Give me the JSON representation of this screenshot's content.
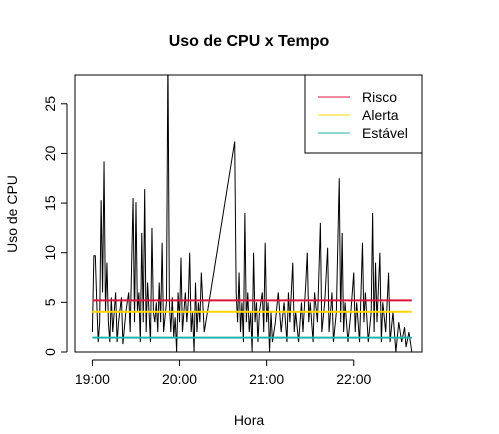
{
  "chart_data": {
    "type": "line",
    "title": "Uso de CPU x Tempo",
    "xlabel": "Hora",
    "ylabel": "Uso de CPU",
    "x": [
      "19:00",
      "19:01",
      "19:02",
      "19:03",
      "19:04",
      "19:05",
      "19:06",
      "19:07",
      "19:08",
      "19:09",
      "19:10",
      "19:11",
      "19:12",
      "19:13",
      "19:14",
      "19:15",
      "19:16",
      "19:17",
      "19:18",
      "19:20",
      "19:21",
      "19:23",
      "19:25",
      "19:26",
      "19:28",
      "19:29",
      "19:30",
      "19:31",
      "19:32",
      "19:33",
      "19:34",
      "19:35",
      "19:36",
      "19:37",
      "19:38",
      "19:40",
      "19:41",
      "19:42",
      "19:43",
      "19:44",
      "19:45",
      "19:46",
      "19:47",
      "19:48",
      "19:49",
      "19:51",
      "19:52",
      "19:53",
      "19:54",
      "19:55",
      "19:56",
      "19:57",
      "19:58",
      "19:59",
      "20:00",
      "20:01",
      "20:02",
      "20:03",
      "20:04",
      "20:05",
      "20:06",
      "20:07",
      "20:08",
      "20:09",
      "20:10",
      "20:11",
      "20:12",
      "20:13",
      "20:14",
      "20:15",
      "20:17",
      "20:38",
      "20:39",
      "20:40",
      "20:41",
      "20:42",
      "20:43",
      "20:44",
      "20:45",
      "20:46",
      "20:47",
      "20:48",
      "20:49",
      "20:50",
      "20:51",
      "20:52",
      "20:53",
      "20:54",
      "20:55",
      "20:57",
      "20:58",
      "20:59",
      "21:00",
      "21:01",
      "21:02",
      "21:03",
      "21:04",
      "21:06",
      "21:08",
      "21:10",
      "21:12",
      "21:14",
      "21:15",
      "21:16",
      "21:18",
      "21:19",
      "21:20",
      "21:22",
      "21:24",
      "21:25",
      "21:27",
      "21:28",
      "21:29",
      "21:30",
      "21:32",
      "21:33",
      "21:35",
      "21:37",
      "21:38",
      "21:40",
      "21:42",
      "21:43",
      "21:45",
      "21:46",
      "21:48",
      "21:50",
      "21:51",
      "21:52",
      "21:53",
      "21:54",
      "21:56",
      "21:58",
      "22:00",
      "22:01",
      "22:02",
      "22:04",
      "22:06",
      "22:07",
      "22:08",
      "22:10",
      "22:12",
      "22:13",
      "22:14",
      "22:15",
      "22:16",
      "22:18",
      "22:19",
      "22:20",
      "22:22",
      "22:24",
      "22:25",
      "22:27",
      "22:29",
      "22:31",
      "22:33",
      "22:35",
      "22:36",
      "22:38",
      "22:40"
    ],
    "series": [
      {
        "name": "Uso de CPU",
        "color": "#000000",
        "values": [
          2,
          9.7,
          9.7,
          5,
          1,
          3,
          15.3,
          6,
          19.2,
          4,
          9,
          3,
          1,
          5.5,
          2,
          4,
          6,
          1,
          3,
          5.5,
          0.8,
          4,
          6,
          2,
          15.5,
          3,
          15.1,
          4,
          6,
          1,
          12,
          3,
          16.4,
          2,
          7,
          1,
          12.5,
          4,
          3,
          5,
          2,
          7,
          3,
          11,
          2,
          5,
          30,
          5,
          2,
          5.5,
          1.5,
          3.5,
          0,
          6,
          3,
          9.5,
          2,
          4,
          6,
          3,
          5,
          10,
          2,
          4,
          0,
          7,
          2,
          5,
          3,
          8,
          2,
          21.2,
          6,
          3,
          8,
          2,
          5,
          1,
          14,
          3,
          6,
          2,
          4,
          0,
          10,
          3,
          5,
          1,
          4,
          6,
          2,
          11,
          3,
          5,
          0,
          4,
          1,
          3,
          6,
          2,
          5,
          1,
          6,
          3,
          9,
          2,
          4,
          1,
          5,
          2,
          7,
          10,
          3,
          5,
          1,
          6,
          3,
          13,
          2,
          5,
          10.5,
          2,
          6,
          1,
          4,
          17.5,
          3,
          12,
          2,
          5,
          1,
          4,
          8,
          2,
          5,
          1,
          11,
          3,
          6,
          1,
          4,
          14,
          2,
          9,
          3,
          10,
          1,
          5,
          2,
          8,
          1,
          4,
          0,
          3,
          1,
          2.5,
          0.5,
          2,
          0
        ]
      }
    ],
    "reference_lines": [
      {
        "name": "Risco",
        "color": "#dc143c",
        "value": 5.2
      },
      {
        "name": "Alerta",
        "color": "#ffd700",
        "value": 4.05
      },
      {
        "name": "Estável",
        "color": "#20b2aa",
        "value": 1.45
      }
    ],
    "xlim": [
      "18:48",
      "22:47"
    ],
    "xticks": [
      "19:00",
      "20:00",
      "21:00",
      "22:00"
    ],
    "ylim": [
      0,
      27.9
    ],
    "yticks": [
      0,
      5,
      10,
      15,
      20,
      25
    ],
    "legend": "top-right"
  }
}
